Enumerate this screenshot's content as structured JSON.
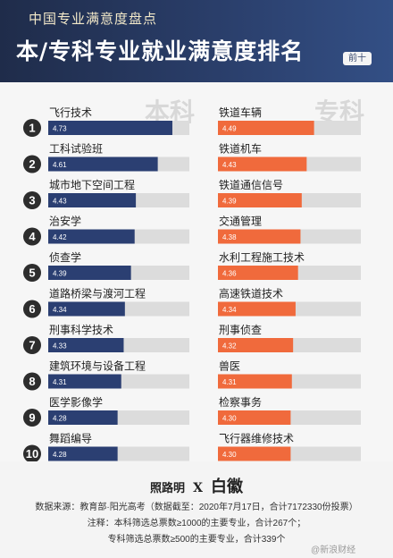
{
  "header": {
    "subtitle": "中国专业满意度盘点",
    "title": "本/专科专业就业满意度排名",
    "badge": "前十"
  },
  "colors": {
    "header_bg": "#26365b",
    "benke_bar": "#2b3f72",
    "zhuanke_bar": "#f06a3c",
    "track": "#dcdcdc",
    "rank_circle": "#2d2d2d"
  },
  "chart_data": {
    "type": "bar",
    "orientation": "horizontal",
    "ranks": [
      "1",
      "2",
      "3",
      "4",
      "5",
      "6",
      "7",
      "8",
      "9",
      "10"
    ],
    "panels": [
      {
        "tag": "本科",
        "categories": [
          "飞行技术",
          "工科试验班",
          "城市地下空间工程",
          "治安学",
          "侦查学",
          "道路桥梁与渡河工程",
          "刑事科学技术",
          "建筑环境与设备工程",
          "医学影像学",
          "舞蹈编导"
        ],
        "values": [
          4.73,
          4.61,
          4.43,
          4.42,
          4.39,
          4.34,
          4.33,
          4.31,
          4.28,
          4.28
        ],
        "value_labels": [
          "4.73",
          "4.61",
          "4.43",
          "4.42",
          "4.39",
          "4.34",
          "4.33",
          "4.31",
          "4.28",
          "4.28"
        ]
      },
      {
        "tag": "专科",
        "categories": [
          "铁道车辆",
          "铁道机车",
          "铁道通信信号",
          "交通管理",
          "水利工程施工技术",
          "高速铁道技术",
          "刑事侦查",
          "兽医",
          "检察事务",
          "飞行器维修技术"
        ],
        "values": [
          4.49,
          4.43,
          4.39,
          4.38,
          4.36,
          4.34,
          4.32,
          4.31,
          4.3,
          4.3
        ],
        "value_labels": [
          "4.49",
          "4.43",
          "4.39",
          "4.38",
          "4.36",
          "4.34",
          "4.32",
          "4.31",
          "4.30",
          "4.30"
        ]
      }
    ]
  },
  "footer": {
    "brand_1": "照路明",
    "brand_x": "X",
    "brand_2": "白徽",
    "source": "数据来源：教育部·阳光高考（数据截至：2020年7月17日，合计7172330份投票）",
    "note_1": "注释：本科筛选总票数≥1000的主要专业，合计267个；",
    "note_2": "专科筛选总票数≥500的主要专业，合计339个",
    "watermark": "@新浪财经"
  }
}
